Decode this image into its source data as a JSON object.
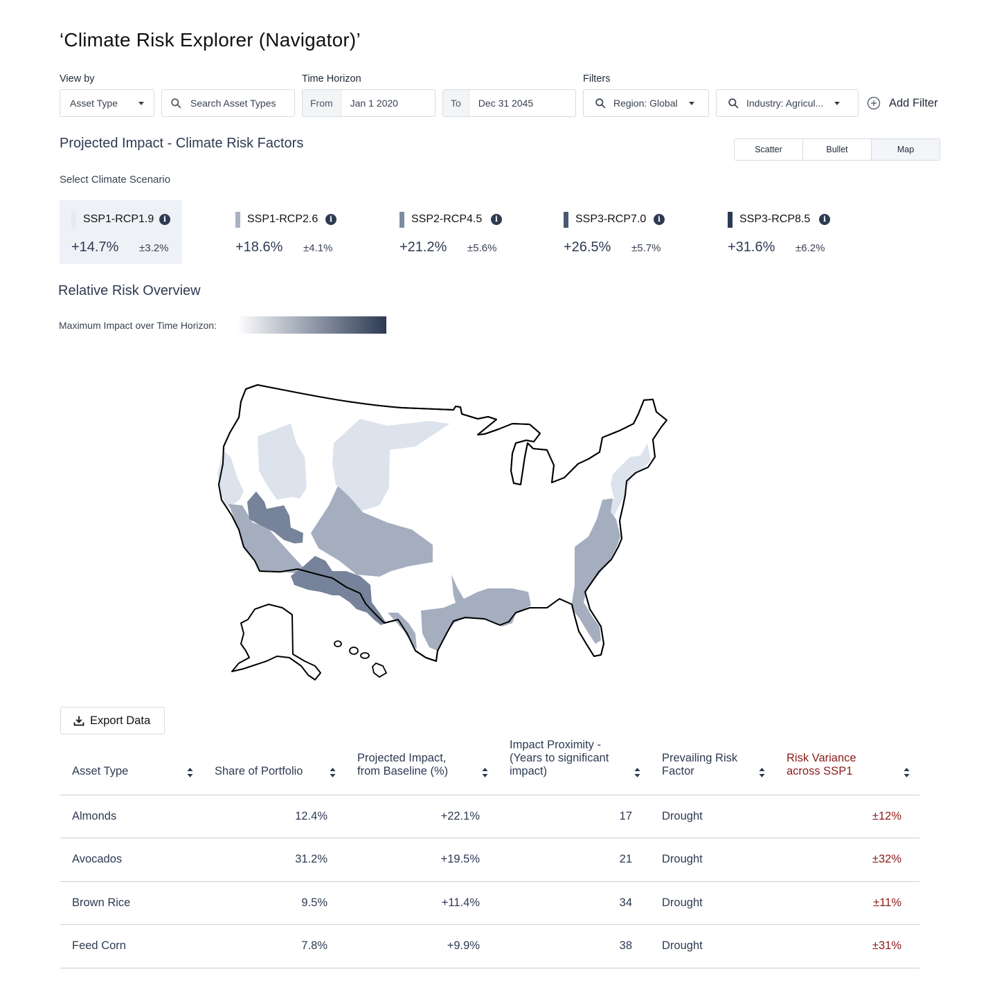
{
  "app": {
    "title": "‘Climate Risk Explorer (Navigator)’"
  },
  "controls": {
    "view_by": {
      "label": "View by",
      "value": "Asset Type",
      "search_placeholder": "Search Asset Types"
    },
    "time_horizon": {
      "label": "Time Horizon",
      "from_label": "From",
      "from_value": "Jan 1 2020",
      "to_label": "To",
      "to_value": "Dec 31 2045"
    },
    "filters": {
      "label": "Filters",
      "region": "Region: Global",
      "industry": "Industry: Agricul...",
      "add_filter": "Add Filter"
    }
  },
  "impact_section": {
    "title": "Projected Impact - Climate Risk Factors",
    "views": [
      "Scatter",
      "Bullet",
      "Map"
    ],
    "selected_view": "Map",
    "scenario_label": "Select Climate Scenario",
    "scenarios": [
      {
        "name": "SSP1-RCP1.9",
        "value": "+14.7%",
        "sd": "±3.2%",
        "color": "#e6e9ee",
        "active": true
      },
      {
        "name": "SSP1-RCP2.6",
        "value": "+18.6%",
        "sd": "±4.1%",
        "color": "#a9b2c0",
        "active": false
      },
      {
        "name": "SSP2-RCP4.5",
        "value": "+21.2%",
        "sd": "±5.6%",
        "color": "#7f8ba0",
        "active": false
      },
      {
        "name": "SSP3-RCP7.0",
        "value": "+26.5%",
        "sd": "±5.7%",
        "color": "#4a5870",
        "active": false
      },
      {
        "name": "SSP3-RCP8.5",
        "value": "+31.6%",
        "sd": "±6.2%",
        "color": "#2d3a52",
        "active": false
      }
    ],
    "info_icon": "i"
  },
  "overview": {
    "title": "Relative Risk Overview",
    "legend_label": "Maximum Impact over Time Horizon:",
    "legend_colors": [
      "#ffffff",
      "#a8b0bd",
      "#2d3a52"
    ],
    "map_colors": {
      "low": "#dde3ed",
      "mid": "#a4aebf",
      "high": "#76839a"
    }
  },
  "export": {
    "label": "Export Data"
  },
  "table": {
    "headers": [
      "Asset Type",
      "Share of Portfolio",
      "Projected Impact, from Baseline (%)",
      "Impact Proximity - (Years to significant impact)",
      "Prevailing Risk Factor",
      "Risk Variance across SSP1"
    ],
    "rows": [
      [
        "Almonds",
        "12.4%",
        "+22.1%",
        "17",
        "Drought",
        "±12%"
      ],
      [
        "Avocados",
        "31.2%",
        "+19.5%",
        "21",
        "Drought",
        "±32%"
      ],
      [
        "Brown Rice",
        "9.5%",
        "+11.4%",
        "34",
        "Drought",
        "±11%"
      ],
      [
        "Feed Corn",
        "7.8%",
        "+9.9%",
        "38",
        "Drought",
        "±31%"
      ]
    ]
  }
}
